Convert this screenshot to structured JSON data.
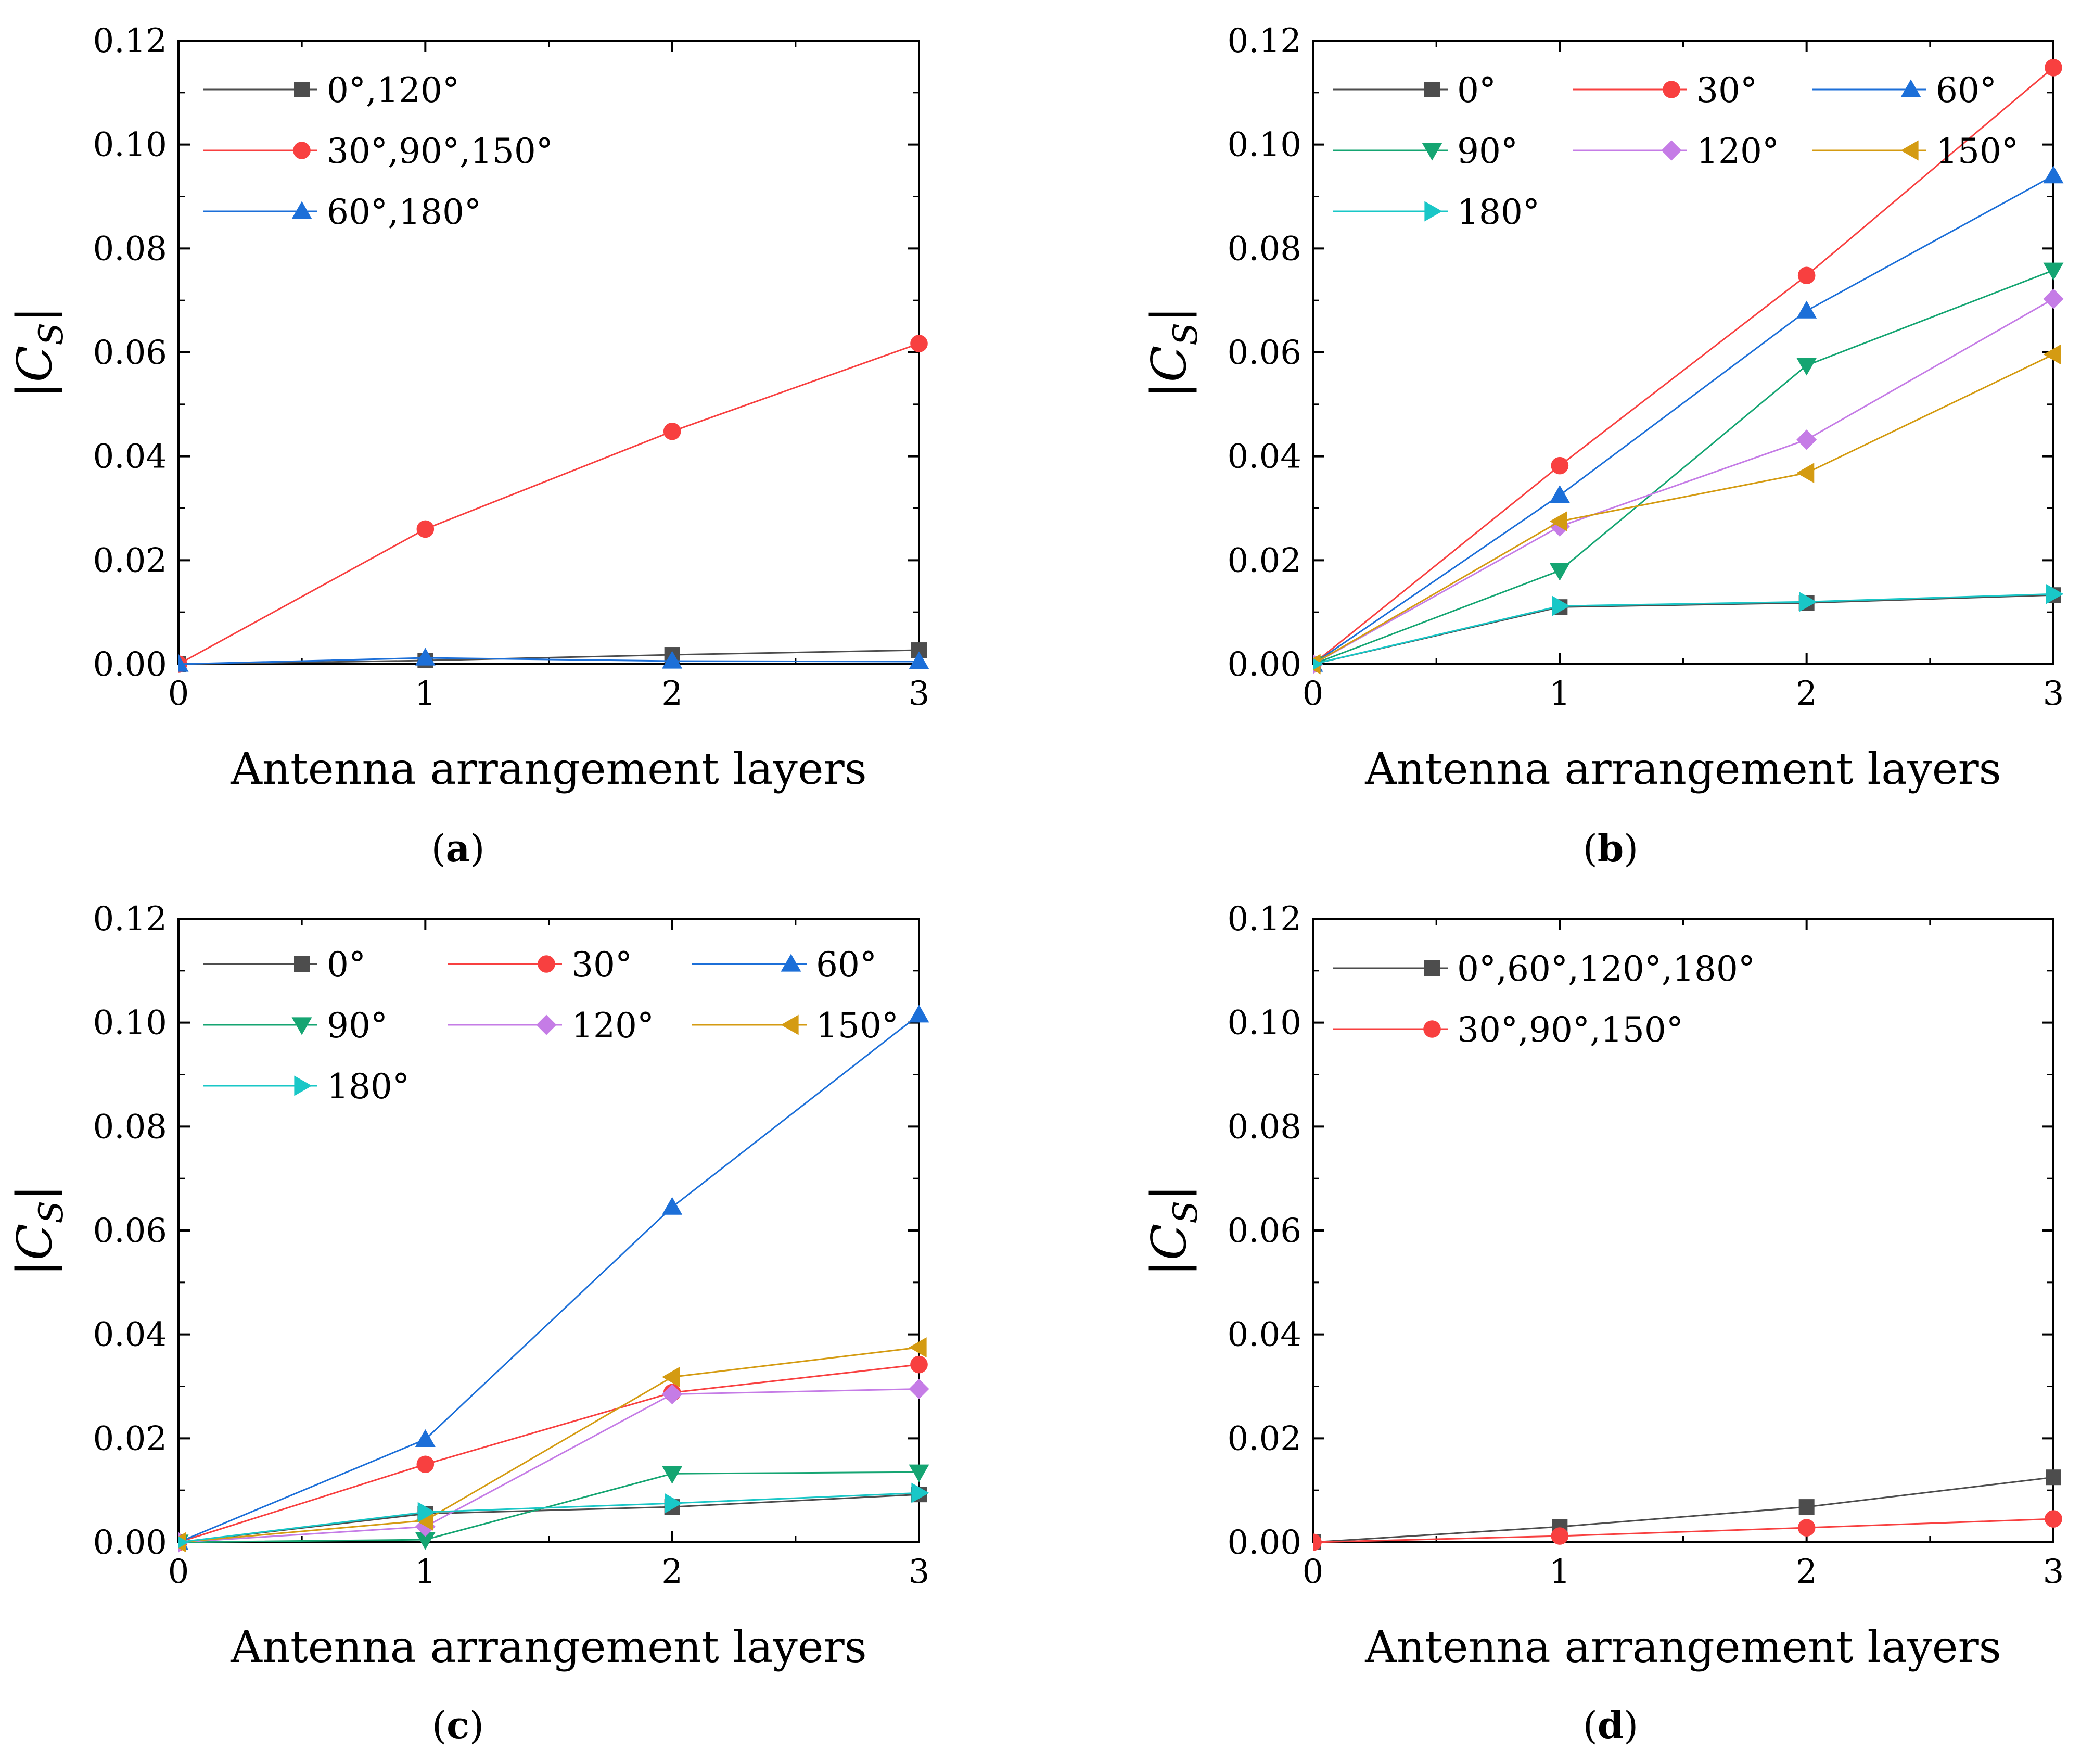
{
  "chart_data": [
    {
      "type": "line",
      "panel": "a",
      "caption_open": "(",
      "caption_letter": "a",
      "caption_close": ")",
      "xlabel": "Antenna arrangement layers",
      "ylabel_bar": "|",
      "ylabel_main": "C",
      "ylabel_sub": "S",
      "ylabel_bar_close": "|",
      "xlim": [
        0,
        3
      ],
      "ylim": [
        0,
        0.12
      ],
      "xticks": [
        "0",
        "1",
        "2",
        "3"
      ],
      "yticks": [
        "0.00",
        "0.02",
        "0.04",
        "0.06",
        "0.08",
        "0.10",
        "0.12"
      ],
      "legend_columns": 1,
      "series": [
        {
          "name": "0°,120°",
          "color": "#4d4d4d",
          "marker": "square",
          "x": [
            0,
            1,
            2,
            3
          ],
          "y": [
            0.0,
            0.0007,
            0.0018,
            0.0027
          ]
        },
        {
          "name": "30°,90°,150°",
          "color": "#f84040",
          "marker": "circle",
          "x": [
            0,
            1,
            2,
            3
          ],
          "y": [
            0.0,
            0.026,
            0.0448,
            0.0617
          ]
        },
        {
          "name": "60°,180°",
          "color": "#1c6fd8",
          "marker": "triangle-up",
          "x": [
            0,
            1,
            2,
            3
          ],
          "y": [
            0.0,
            0.0012,
            0.0006,
            0.0005
          ]
        }
      ]
    },
    {
      "type": "line",
      "panel": "b",
      "caption_open": "(",
      "caption_letter": "b",
      "caption_close": ")",
      "xlabel": "Antenna arrangement layers",
      "ylabel_bar": "|",
      "ylabel_main": "C",
      "ylabel_sub": "S",
      "ylabel_bar_close": "|",
      "xlim": [
        0,
        3
      ],
      "ylim": [
        0,
        0.12
      ],
      "xticks": [
        "0",
        "1",
        "2",
        "3"
      ],
      "yticks": [
        "0.00",
        "0.02",
        "0.04",
        "0.06",
        "0.08",
        "0.10",
        "0.12"
      ],
      "legend_columns": 3,
      "series": [
        {
          "name": "0°",
          "color": "#4d4d4d",
          "marker": "square",
          "x": [
            0,
            1,
            2,
            3
          ],
          "y": [
            0.0,
            0.011,
            0.0118,
            0.0133
          ]
        },
        {
          "name": "30°",
          "color": "#f84040",
          "marker": "circle",
          "x": [
            0,
            1,
            2,
            3
          ],
          "y": [
            0.0,
            0.0382,
            0.0748,
            0.1148
          ]
        },
        {
          "name": "60°",
          "color": "#1c6fd8",
          "marker": "triangle-up",
          "x": [
            0,
            1,
            2,
            3
          ],
          "y": [
            0.0,
            0.0325,
            0.068,
            0.094
          ]
        },
        {
          "name": "90°",
          "color": "#15a572",
          "marker": "triangle-down",
          "x": [
            0,
            1,
            2,
            3
          ],
          "y": [
            0.0,
            0.018,
            0.0575,
            0.0758
          ]
        },
        {
          "name": "120°",
          "color": "#c57ce6",
          "marker": "diamond",
          "x": [
            0,
            1,
            2,
            3
          ],
          "y": [
            0.0,
            0.0265,
            0.0432,
            0.0703
          ]
        },
        {
          "name": "150°",
          "color": "#d49b12",
          "marker": "triangle-left",
          "x": [
            0,
            1,
            2,
            3
          ],
          "y": [
            0.0,
            0.0275,
            0.0368,
            0.0596
          ]
        },
        {
          "name": "180°",
          "color": "#19c7c7",
          "marker": "triangle-right",
          "x": [
            0,
            1,
            2,
            3
          ],
          "y": [
            0.0,
            0.0112,
            0.012,
            0.0135
          ]
        }
      ]
    },
    {
      "type": "line",
      "panel": "c",
      "caption_open": "(",
      "caption_letter": "c",
      "caption_close": ")",
      "xlabel": "Antenna arrangement layers",
      "ylabel_bar": "|",
      "ylabel_main": "C",
      "ylabel_sub": "S",
      "ylabel_bar_close": "|",
      "xlim": [
        0,
        3
      ],
      "ylim": [
        0,
        0.12
      ],
      "xticks": [
        "0",
        "1",
        "2",
        "3"
      ],
      "yticks": [
        "0.00",
        "0.02",
        "0.04",
        "0.06",
        "0.08",
        "0.10",
        "0.12"
      ],
      "legend_columns": 3,
      "series": [
        {
          "name": "0°",
          "color": "#4d4d4d",
          "marker": "square",
          "x": [
            0,
            1,
            2,
            3
          ],
          "y": [
            0.0,
            0.0055,
            0.0068,
            0.0092
          ]
        },
        {
          "name": "30°",
          "color": "#f84040",
          "marker": "circle",
          "x": [
            0,
            1,
            2,
            3
          ],
          "y": [
            0.0,
            0.015,
            0.0288,
            0.0342
          ]
        },
        {
          "name": "60°",
          "color": "#1c6fd8",
          "marker": "triangle-up",
          "x": [
            0,
            1,
            2,
            3
          ],
          "y": [
            0.0,
            0.0198,
            0.0645,
            0.1015
          ]
        },
        {
          "name": "90°",
          "color": "#15a572",
          "marker": "triangle-down",
          "x": [
            0,
            1,
            2,
            3
          ],
          "y": [
            0.0,
            0.0005,
            0.0132,
            0.0135
          ]
        },
        {
          "name": "120°",
          "color": "#c57ce6",
          "marker": "diamond",
          "x": [
            0,
            1,
            2,
            3
          ],
          "y": [
            0.0,
            0.003,
            0.0285,
            0.0295
          ]
        },
        {
          "name": "150°",
          "color": "#d49b12",
          "marker": "triangle-left",
          "x": [
            0,
            1,
            2,
            3
          ],
          "y": [
            0.0,
            0.0042,
            0.0318,
            0.0375
          ]
        },
        {
          "name": "180°",
          "color": "#19c7c7",
          "marker": "triangle-right",
          "x": [
            0,
            1,
            2,
            3
          ],
          "y": [
            0.0,
            0.0058,
            0.0075,
            0.0095
          ]
        }
      ]
    },
    {
      "type": "line",
      "panel": "d",
      "caption_open": "(",
      "caption_letter": "d",
      "caption_close": ")",
      "xlabel": "Antenna arrangement layers",
      "ylabel_bar": "|",
      "ylabel_main": "C",
      "ylabel_sub": "S",
      "ylabel_bar_close": "|",
      "xlim": [
        0,
        3
      ],
      "ylim": [
        0,
        0.12
      ],
      "xticks": [
        "0",
        "1",
        "2",
        "3"
      ],
      "yticks": [
        "0.00",
        "0.02",
        "0.04",
        "0.06",
        "0.08",
        "0.10",
        "0.12"
      ],
      "legend_columns": 1,
      "series": [
        {
          "name": "0°,60°,120°,180°",
          "color": "#4d4d4d",
          "marker": "square",
          "x": [
            0,
            1,
            2,
            3
          ],
          "y": [
            0.0,
            0.003,
            0.0068,
            0.0125
          ]
        },
        {
          "name": "30°,90°,150°",
          "color": "#f84040",
          "marker": "circle",
          "x": [
            0,
            1,
            2,
            3
          ],
          "y": [
            0.0,
            0.0012,
            0.0028,
            0.0045
          ]
        }
      ]
    }
  ]
}
